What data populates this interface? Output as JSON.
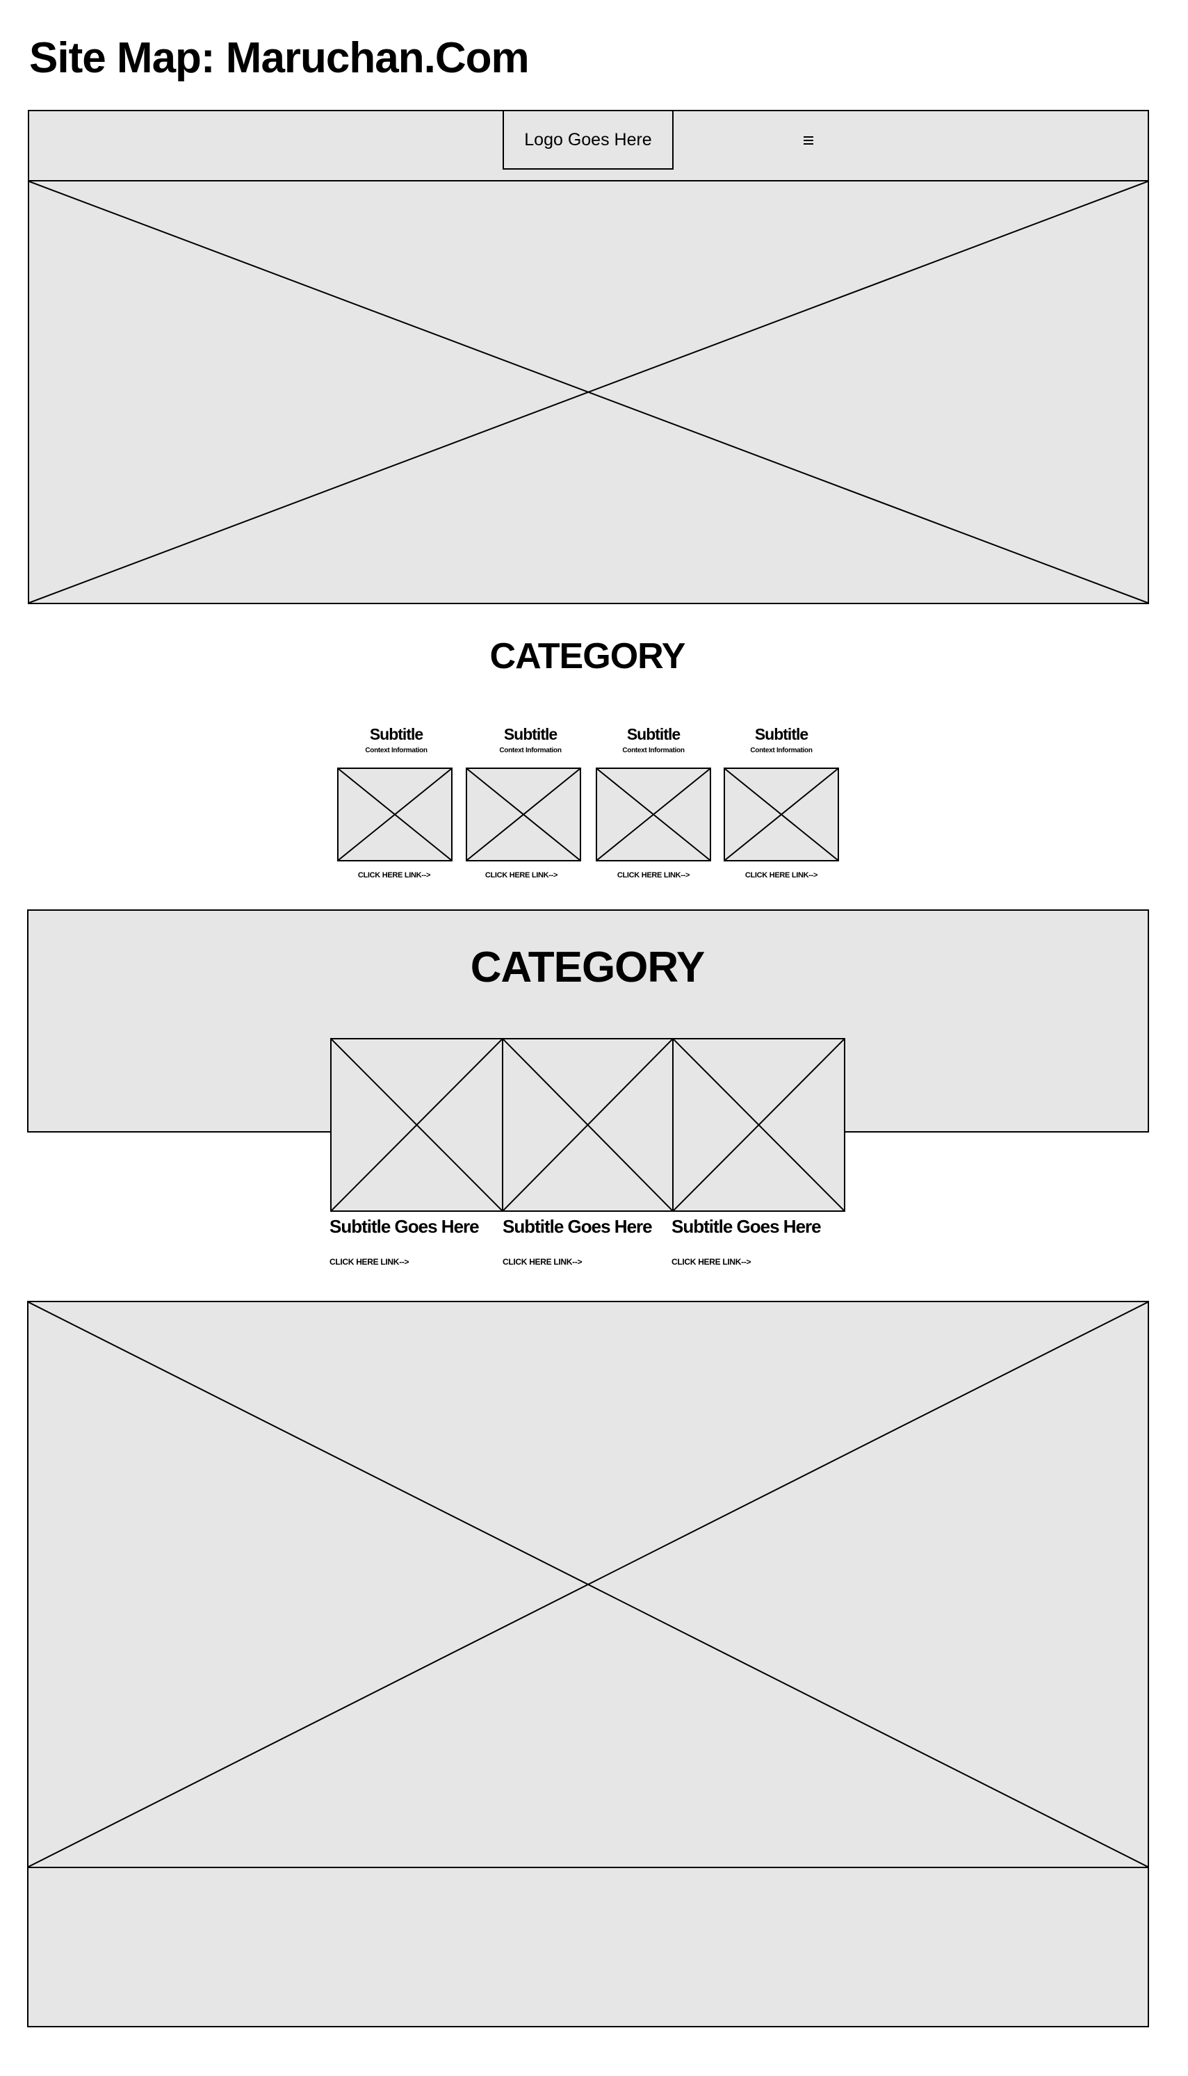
{
  "page_title": "Site Map: Maruchan.Com",
  "header": {
    "logo_text": "Logo Goes Here",
    "menu_icon": "hamburger-menu-icon"
  },
  "category_one": {
    "heading": "CATEGORY",
    "cards": [
      {
        "subtitle": "Subtitle",
        "context": "Context Information",
        "link": "CLICK HERE LINK-->"
      },
      {
        "subtitle": "Subtitle",
        "context": "Context Information",
        "link": "CLICK HERE LINK-->"
      },
      {
        "subtitle": "Subtitle",
        "context": "Context Information",
        "link": "CLICK HERE LINK-->"
      },
      {
        "subtitle": "Subtitle",
        "context": "Context Information",
        "link": "CLICK HERE LINK-->"
      }
    ]
  },
  "category_two": {
    "heading": "CATEGORY",
    "features": [
      {
        "subtitle": "Subtitle Goes Here",
        "link": "CLICK HERE LINK-->"
      },
      {
        "subtitle": "Subtitle Goes Here",
        "link": "CLICK HERE LINK-->"
      },
      {
        "subtitle": "Subtitle Goes Here",
        "link": "CLICK HERE LINK-->"
      }
    ]
  },
  "colors": {
    "placeholder_fill": "#e6e6e6",
    "stroke": "#000000"
  }
}
